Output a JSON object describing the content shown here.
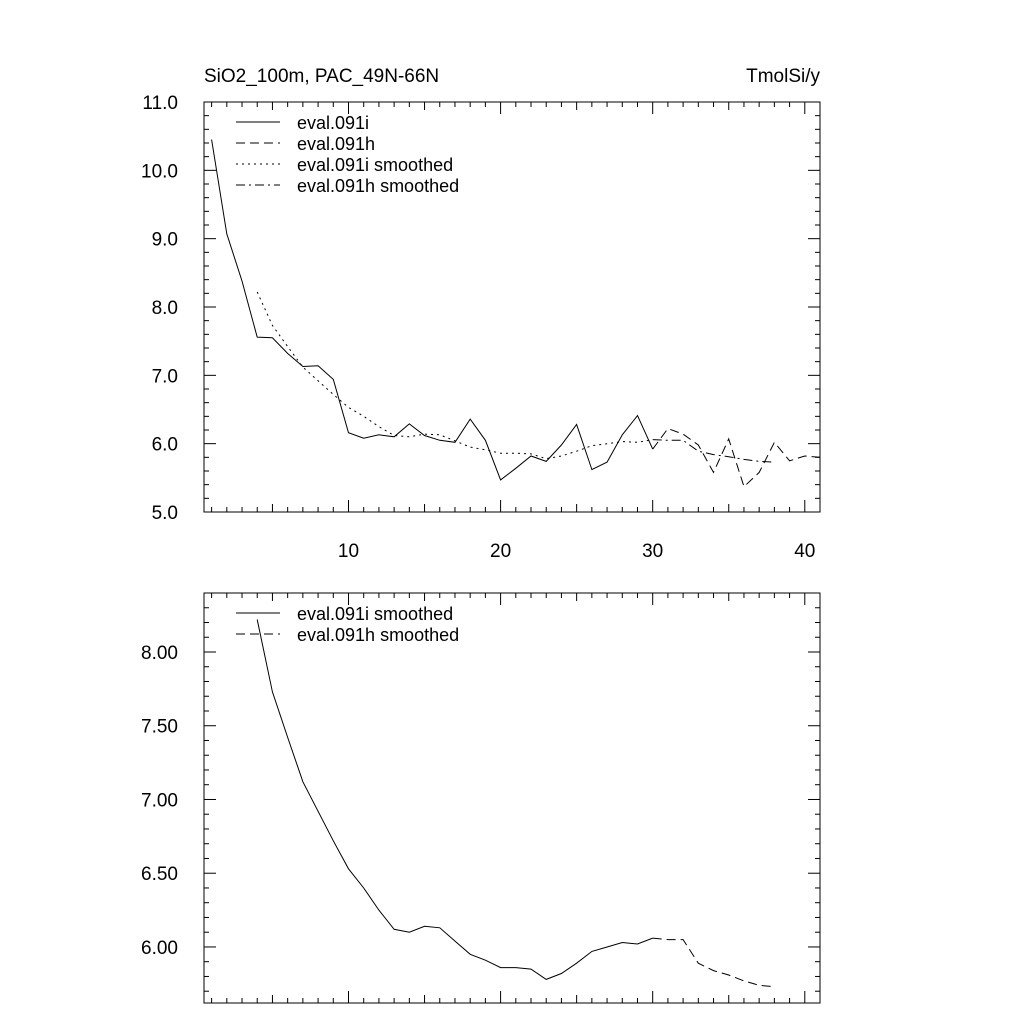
{
  "chart_data": [
    {
      "type": "line",
      "title": "SiO2_100m, PAC_49N-66N",
      "units": "TmolSi/y",
      "xlim": [
        0.5,
        41
      ],
      "ylim": [
        5.0,
        11.0
      ],
      "xticks": [
        10,
        20,
        30,
        40
      ],
      "xtick_labels": [
        "10",
        "20",
        "30",
        "40"
      ],
      "yticks": [
        5.0,
        6.0,
        7.0,
        8.0,
        9.0,
        10.0,
        11.0
      ],
      "ytick_labels": [
        "5.0",
        "6.0",
        "7.0",
        "8.0",
        "9.0",
        "10.0",
        "11.0"
      ],
      "legend_position": "top-left",
      "series": [
        {
          "name": "eval.091i",
          "dash": "solid",
          "x": [
            1,
            2,
            3,
            4,
            5,
            6,
            7,
            8,
            9,
            10,
            11,
            12,
            13,
            14,
            15,
            16,
            17,
            18,
            19,
            20,
            21,
            22,
            23,
            24,
            25,
            26,
            27,
            28,
            29,
            30
          ],
          "y": [
            10.45,
            9.07,
            8.38,
            7.56,
            7.55,
            7.32,
            7.13,
            7.14,
            6.94,
            6.16,
            6.08,
            6.13,
            6.1,
            6.29,
            6.12,
            6.05,
            6.02,
            6.36,
            6.05,
            5.47,
            5.64,
            5.82,
            5.74,
            5.98,
            6.28,
            5.62,
            5.73,
            6.13,
            6.41,
            5.92
          ]
        },
        {
          "name": "eval.091h",
          "dash": "dash",
          "x": [
            30,
            31,
            32,
            33,
            34,
            35,
            36,
            37,
            38,
            39,
            40,
            41
          ],
          "y": [
            5.92,
            6.22,
            6.14,
            5.98,
            5.58,
            6.07,
            5.37,
            5.58,
            6.02,
            5.75,
            5.82,
            5.8
          ]
        },
        {
          "name": "eval.091i smoothed",
          "dash": "dot",
          "x": [
            4,
            5,
            6,
            7,
            8,
            9,
            10,
            11,
            12,
            13,
            14,
            15,
            16,
            17,
            18,
            19,
            20,
            21,
            22,
            23,
            24,
            25,
            26,
            27,
            28,
            29,
            30
          ],
          "y": [
            8.22,
            7.73,
            7.42,
            7.12,
            6.92,
            6.72,
            6.53,
            6.4,
            6.25,
            6.12,
            6.1,
            6.14,
            6.13,
            6.04,
            5.95,
            5.91,
            5.86,
            5.86,
            5.85,
            5.78,
            5.82,
            5.89,
            5.97,
            6.0,
            6.03,
            6.02,
            6.06
          ]
        },
        {
          "name": "eval.091h smoothed",
          "dash": "dashdot",
          "x": [
            30,
            31,
            32,
            33,
            34,
            35,
            36,
            37,
            38
          ],
          "y": [
            6.06,
            6.05,
            6.05,
            5.89,
            5.84,
            5.81,
            5.77,
            5.74,
            5.73
          ]
        }
      ]
    },
    {
      "type": "line",
      "xlim": [
        0.5,
        41
      ],
      "ylim": [
        5.62,
        8.4
      ],
      "xticks": [
        10,
        20,
        30,
        40
      ],
      "yticks": [
        6.0,
        6.5,
        7.0,
        7.5,
        8.0
      ],
      "ytick_labels": [
        "6.00",
        "6.50",
        "7.00",
        "7.50",
        "8.00"
      ],
      "legend_position": "top-left",
      "series": [
        {
          "name": "eval.091i smoothed",
          "dash": "solid",
          "x": [
            4,
            5,
            6,
            7,
            8,
            9,
            10,
            11,
            12,
            13,
            14,
            15,
            16,
            17,
            18,
            19,
            20,
            21,
            22,
            23,
            24,
            25,
            26,
            27,
            28,
            29,
            30
          ],
          "y": [
            8.22,
            7.73,
            7.42,
            7.12,
            6.92,
            6.72,
            6.53,
            6.4,
            6.25,
            6.12,
            6.1,
            6.14,
            6.13,
            6.04,
            5.95,
            5.91,
            5.86,
            5.86,
            5.85,
            5.78,
            5.82,
            5.89,
            5.97,
            6.0,
            6.03,
            6.02,
            6.06
          ]
        },
        {
          "name": "eval.091h smoothed",
          "dash": "dash",
          "x": [
            30,
            31,
            32,
            33,
            34,
            35,
            36,
            37,
            38
          ],
          "y": [
            6.06,
            6.05,
            6.05,
            5.89,
            5.84,
            5.81,
            5.77,
            5.74,
            5.73
          ]
        }
      ]
    }
  ]
}
